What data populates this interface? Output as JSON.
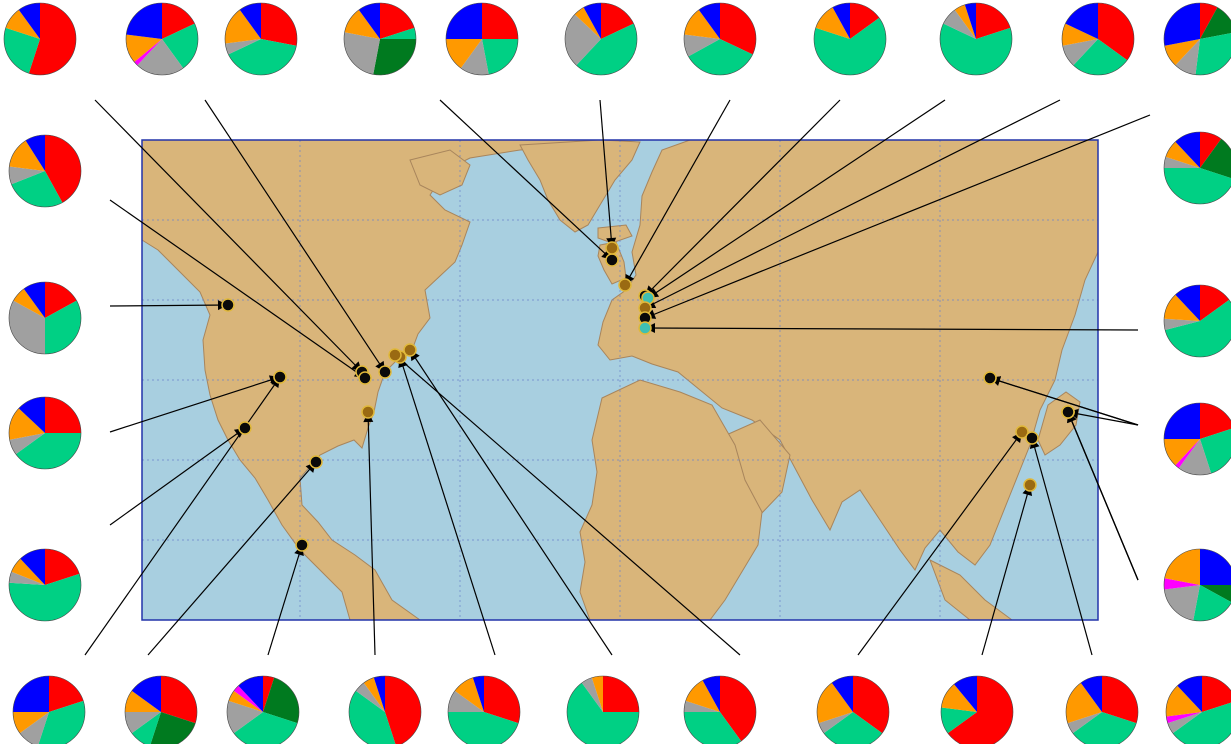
{
  "colors": {
    "ocean": "#a8cfe0",
    "land": "#d9b57a",
    "coast": "#a8855c",
    "grid": "#6b82c9",
    "frame": "#2233aa",
    "leader": "#000000",
    "marker_black": "#0a0a0a",
    "marker_brown": "#9a6a12",
    "marker_cyan": "#3fbfb2",
    "marker_ring": "#e0b83a",
    "pie_outline": "#444444"
  },
  "legend_category_colors": {
    "red": "#ff0000",
    "green": "#00d084",
    "gray": "#a0a0a0",
    "orange": "#ff9900",
    "blue": "#0000ff",
    "dark_green": "#007a1f",
    "magenta": "#ff00ff"
  },
  "map": {
    "projection": "plate carree",
    "grid": true
  },
  "sites": [
    {
      "id": "t1",
      "marker": "black",
      "slices": [
        [
          "red",
          0.55
        ],
        [
          "green",
          0.25
        ],
        [
          "orange",
          0.1
        ],
        [
          "blue",
          0.1
        ]
      ]
    },
    {
      "id": "t2",
      "marker": "black",
      "slices": [
        [
          "red",
          0.18
        ],
        [
          "green",
          0.22
        ],
        [
          "gray",
          0.22
        ],
        [
          "magenta",
          0.02
        ],
        [
          "orange",
          0.13
        ],
        [
          "blue",
          0.23
        ]
      ]
    },
    {
      "id": "t3",
      "marker": "black",
      "slices": [
        [
          "red",
          0.28
        ],
        [
          "green",
          0.4
        ],
        [
          "gray",
          0.05
        ],
        [
          "orange",
          0.17
        ],
        [
          "blue",
          0.1
        ]
      ]
    },
    {
      "id": "t4",
      "marker": "brown",
      "slices": [
        [
          "red",
          0.2
        ],
        [
          "green",
          0.05
        ],
        [
          "dark_green",
          0.28
        ],
        [
          "gray",
          0.25
        ],
        [
          "orange",
          0.12
        ],
        [
          "blue",
          0.1
        ]
      ]
    },
    {
      "id": "t5",
      "marker": "brown",
      "slices": [
        [
          "red",
          0.25
        ],
        [
          "green",
          0.22
        ],
        [
          "gray",
          0.13
        ],
        [
          "orange",
          0.15
        ],
        [
          "blue",
          0.25
        ]
      ]
    },
    {
      "id": "t6",
      "marker": "black",
      "slices": [
        [
          "red",
          0.18
        ],
        [
          "green",
          0.44
        ],
        [
          "gray",
          0.25
        ],
        [
          "orange",
          0.05
        ],
        [
          "blue",
          0.08
        ]
      ]
    },
    {
      "id": "t7",
      "marker": "cyan",
      "slices": [
        [
          "red",
          0.32
        ],
        [
          "green",
          0.35
        ],
        [
          "gray",
          0.1
        ],
        [
          "orange",
          0.13
        ],
        [
          "blue",
          0.1
        ]
      ]
    },
    {
      "id": "t8",
      "marker": "brown",
      "slices": [
        [
          "red",
          0.15
        ],
        [
          "green",
          0.65
        ],
        [
          "orange",
          0.12
        ],
        [
          "blue",
          0.08
        ]
      ]
    },
    {
      "id": "t9",
      "marker": "black",
      "slices": [
        [
          "red",
          0.2
        ],
        [
          "green",
          0.62
        ],
        [
          "gray",
          0.08
        ],
        [
          "orange",
          0.05
        ],
        [
          "blue",
          0.05
        ]
      ]
    },
    {
      "id": "t10",
      "marker": "cyan",
      "slices": [
        [
          "red",
          0.35
        ],
        [
          "green",
          0.27
        ],
        [
          "gray",
          0.1
        ],
        [
          "orange",
          0.1
        ],
        [
          "blue",
          0.18
        ]
      ]
    },
    {
      "id": "t11",
      "marker": "brown",
      "slices": [
        [
          "red",
          0.08
        ],
        [
          "dark_green",
          0.14
        ],
        [
          "green",
          0.3
        ],
        [
          "gray",
          0.1
        ],
        [
          "orange",
          0.1
        ],
        [
          "blue",
          0.28
        ]
      ]
    },
    {
      "id": "l1",
      "marker": "black",
      "slices": [
        [
          "red",
          0.42
        ],
        [
          "green",
          0.27
        ],
        [
          "gray",
          0.08
        ],
        [
          "orange",
          0.14
        ],
        [
          "blue",
          0.09
        ]
      ]
    },
    {
      "id": "l2",
      "marker": "black",
      "slices": [
        [
          "red",
          0.17
        ],
        [
          "green",
          0.33
        ],
        [
          "gray",
          0.33
        ],
        [
          "orange",
          0.07
        ],
        [
          "blue",
          0.1
        ]
      ]
    },
    {
      "id": "l3",
      "marker": "brown",
      "slices": [
        [
          "red",
          0.25
        ],
        [
          "green",
          0.4
        ],
        [
          "gray",
          0.07
        ],
        [
          "orange",
          0.15
        ],
        [
          "blue",
          0.13
        ]
      ]
    },
    {
      "id": "l4",
      "marker": "black",
      "slices": [
        [
          "red",
          0.2
        ],
        [
          "green",
          0.56
        ],
        [
          "gray",
          0.05
        ],
        [
          "orange",
          0.07
        ],
        [
          "blue",
          0.12
        ]
      ]
    },
    {
      "id": "r1",
      "marker": "brown",
      "slices": [
        [
          "red",
          0.1
        ],
        [
          "dark_green",
          0.2
        ],
        [
          "green",
          0.45
        ],
        [
          "gray",
          0.05
        ],
        [
          "orange",
          0.08
        ],
        [
          "blue",
          0.12
        ]
      ]
    },
    {
      "id": "r2",
      "marker": "brown",
      "slices": [
        [
          "red",
          0.15
        ],
        [
          "green",
          0.56
        ],
        [
          "gray",
          0.05
        ],
        [
          "orange",
          0.12
        ],
        [
          "blue",
          0.12
        ]
      ]
    },
    {
      "id": "r3",
      "marker": "black",
      "slices": [
        [
          "red",
          0.2
        ],
        [
          "green",
          0.25
        ],
        [
          "gray",
          0.15
        ],
        [
          "magenta",
          0.02
        ],
        [
          "orange",
          0.13
        ],
        [
          "blue",
          0.25
        ]
      ]
    },
    {
      "id": "r4",
      "marker": "black",
      "slices": [
        [
          "blue",
          0.25
        ],
        [
          "dark_green",
          0.08
        ],
        [
          "green",
          0.2
        ],
        [
          "gray",
          0.2
        ],
        [
          "magenta",
          0.05
        ],
        [
          "orange",
          0.22
        ]
      ]
    },
    {
      "id": "b1",
      "marker": "black",
      "slices": [
        [
          "red",
          0.2
        ],
        [
          "green",
          0.35
        ],
        [
          "gray",
          0.1
        ],
        [
          "orange",
          0.1
        ],
        [
          "blue",
          0.25
        ]
      ]
    },
    {
      "id": "b2",
      "marker": "black",
      "slices": [
        [
          "red",
          0.3
        ],
        [
          "dark_green",
          0.25
        ],
        [
          "green",
          0.1
        ],
        [
          "gray",
          0.1
        ],
        [
          "orange",
          0.1
        ],
        [
          "blue",
          0.15
        ]
      ]
    },
    {
      "id": "b3",
      "marker": "black",
      "slices": [
        [
          "red",
          0.05
        ],
        [
          "dark_green",
          0.25
        ],
        [
          "green",
          0.35
        ],
        [
          "gray",
          0.15
        ],
        [
          "orange",
          0.05
        ],
        [
          "magenta",
          0.03
        ],
        [
          "blue",
          0.12
        ]
      ]
    },
    {
      "id": "b4",
      "marker": "brown",
      "slices": [
        [
          "red",
          0.45
        ],
        [
          "green",
          0.4
        ],
        [
          "gray",
          0.05
        ],
        [
          "orange",
          0.05
        ],
        [
          "blue",
          0.05
        ]
      ]
    },
    {
      "id": "b5",
      "marker": "brown",
      "slices": [
        [
          "red",
          0.3
        ],
        [
          "green",
          0.45
        ],
        [
          "gray",
          0.1
        ],
        [
          "orange",
          0.1
        ],
        [
          "blue",
          0.05
        ]
      ]
    },
    {
      "id": "b6",
      "marker": "brown",
      "slices": [
        [
          "red",
          0.25
        ],
        [
          "green",
          0.65
        ],
        [
          "gray",
          0.05
        ],
        [
          "orange",
          0.05
        ]
      ]
    },
    {
      "id": "b7",
      "marker": "brown",
      "slices": [
        [
          "red",
          0.4
        ],
        [
          "green",
          0.35
        ],
        [
          "gray",
          0.05
        ],
        [
          "orange",
          0.12
        ],
        [
          "blue",
          0.08
        ]
      ]
    },
    {
      "id": "b8",
      "marker": "brown",
      "slices": [
        [
          "red",
          0.35
        ],
        [
          "green",
          0.3
        ],
        [
          "gray",
          0.05
        ],
        [
          "orange",
          0.2
        ],
        [
          "blue",
          0.1
        ]
      ]
    },
    {
      "id": "b9",
      "marker": "brown",
      "slices": [
        [
          "red",
          0.65
        ],
        [
          "green",
          0.12
        ],
        [
          "orange",
          0.12
        ],
        [
          "blue",
          0.11
        ]
      ]
    },
    {
      "id": "b10",
      "marker": "black",
      "slices": [
        [
          "red",
          0.3
        ],
        [
          "green",
          0.35
        ],
        [
          "gray",
          0.05
        ],
        [
          "orange",
          0.2
        ],
        [
          "blue",
          0.1
        ]
      ]
    },
    {
      "id": "b11",
      "marker": "black",
      "slices": [
        [
          "red",
          0.2
        ],
        [
          "green",
          0.45
        ],
        [
          "gray",
          0.05
        ],
        [
          "magenta",
          0.03
        ],
        [
          "orange",
          0.15
        ],
        [
          "blue",
          0.12
        ]
      ]
    }
  ]
}
